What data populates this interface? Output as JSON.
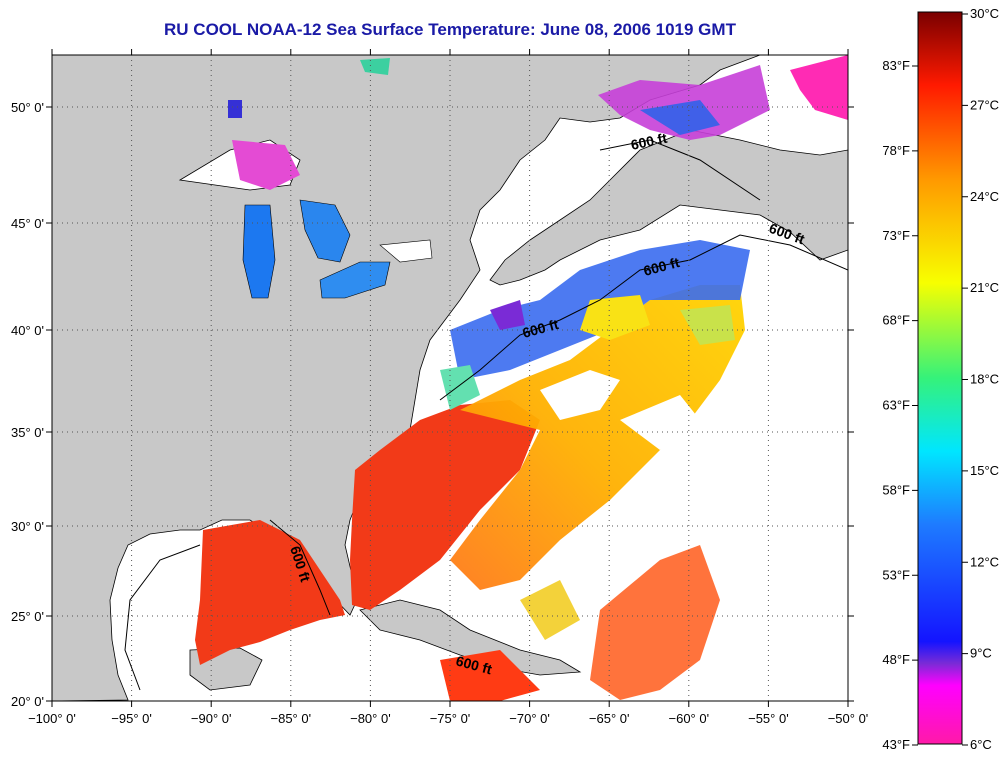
{
  "title": "RU COOL  NOAA-12  Sea Surface Temperature:  June 08, 2006 1019 GMT",
  "map": {
    "lon_ticks": [
      "−100° 0'",
      "−95° 0'",
      "−90° 0'",
      "−85° 0'",
      "−80° 0'",
      "−75° 0'",
      "−70° 0'",
      "−65° 0'",
      "−60° 0'",
      "−55° 0'",
      "−50° 0'"
    ],
    "lat_ticks": [
      "50° 0'",
      "45° 0'",
      "40° 0'",
      "35° 0'",
      "30° 0'",
      "25° 0'",
      "20° 0'"
    ],
    "contour_labels": [
      "600 ft",
      "600 ft",
      "600 ft",
      "600 ft",
      "600 ft",
      "600 ft"
    ],
    "colors": {
      "land": "#c8c8c8",
      "ocean_no_data": "#ffffff",
      "title": "#1a1aa6"
    }
  },
  "colorbar": {
    "celsius": [
      "30°C",
      "27°C",
      "24°C",
      "21°C",
      "18°C",
      "15°C",
      "12°C",
      "9°C",
      "6°C"
    ],
    "fahrenheit": [
      "83°F",
      "78°F",
      "73°F",
      "68°F",
      "63°F",
      "58°F",
      "53°F",
      "48°F",
      "43°F"
    ],
    "stops": [
      "#8b0000",
      "#ff0000",
      "#ff8c00",
      "#ffff00",
      "#7fff00",
      "#00ffff",
      "#0064ff",
      "#0000ff",
      "#9b30ff",
      "#ff00ff",
      "#ff1493"
    ]
  }
}
